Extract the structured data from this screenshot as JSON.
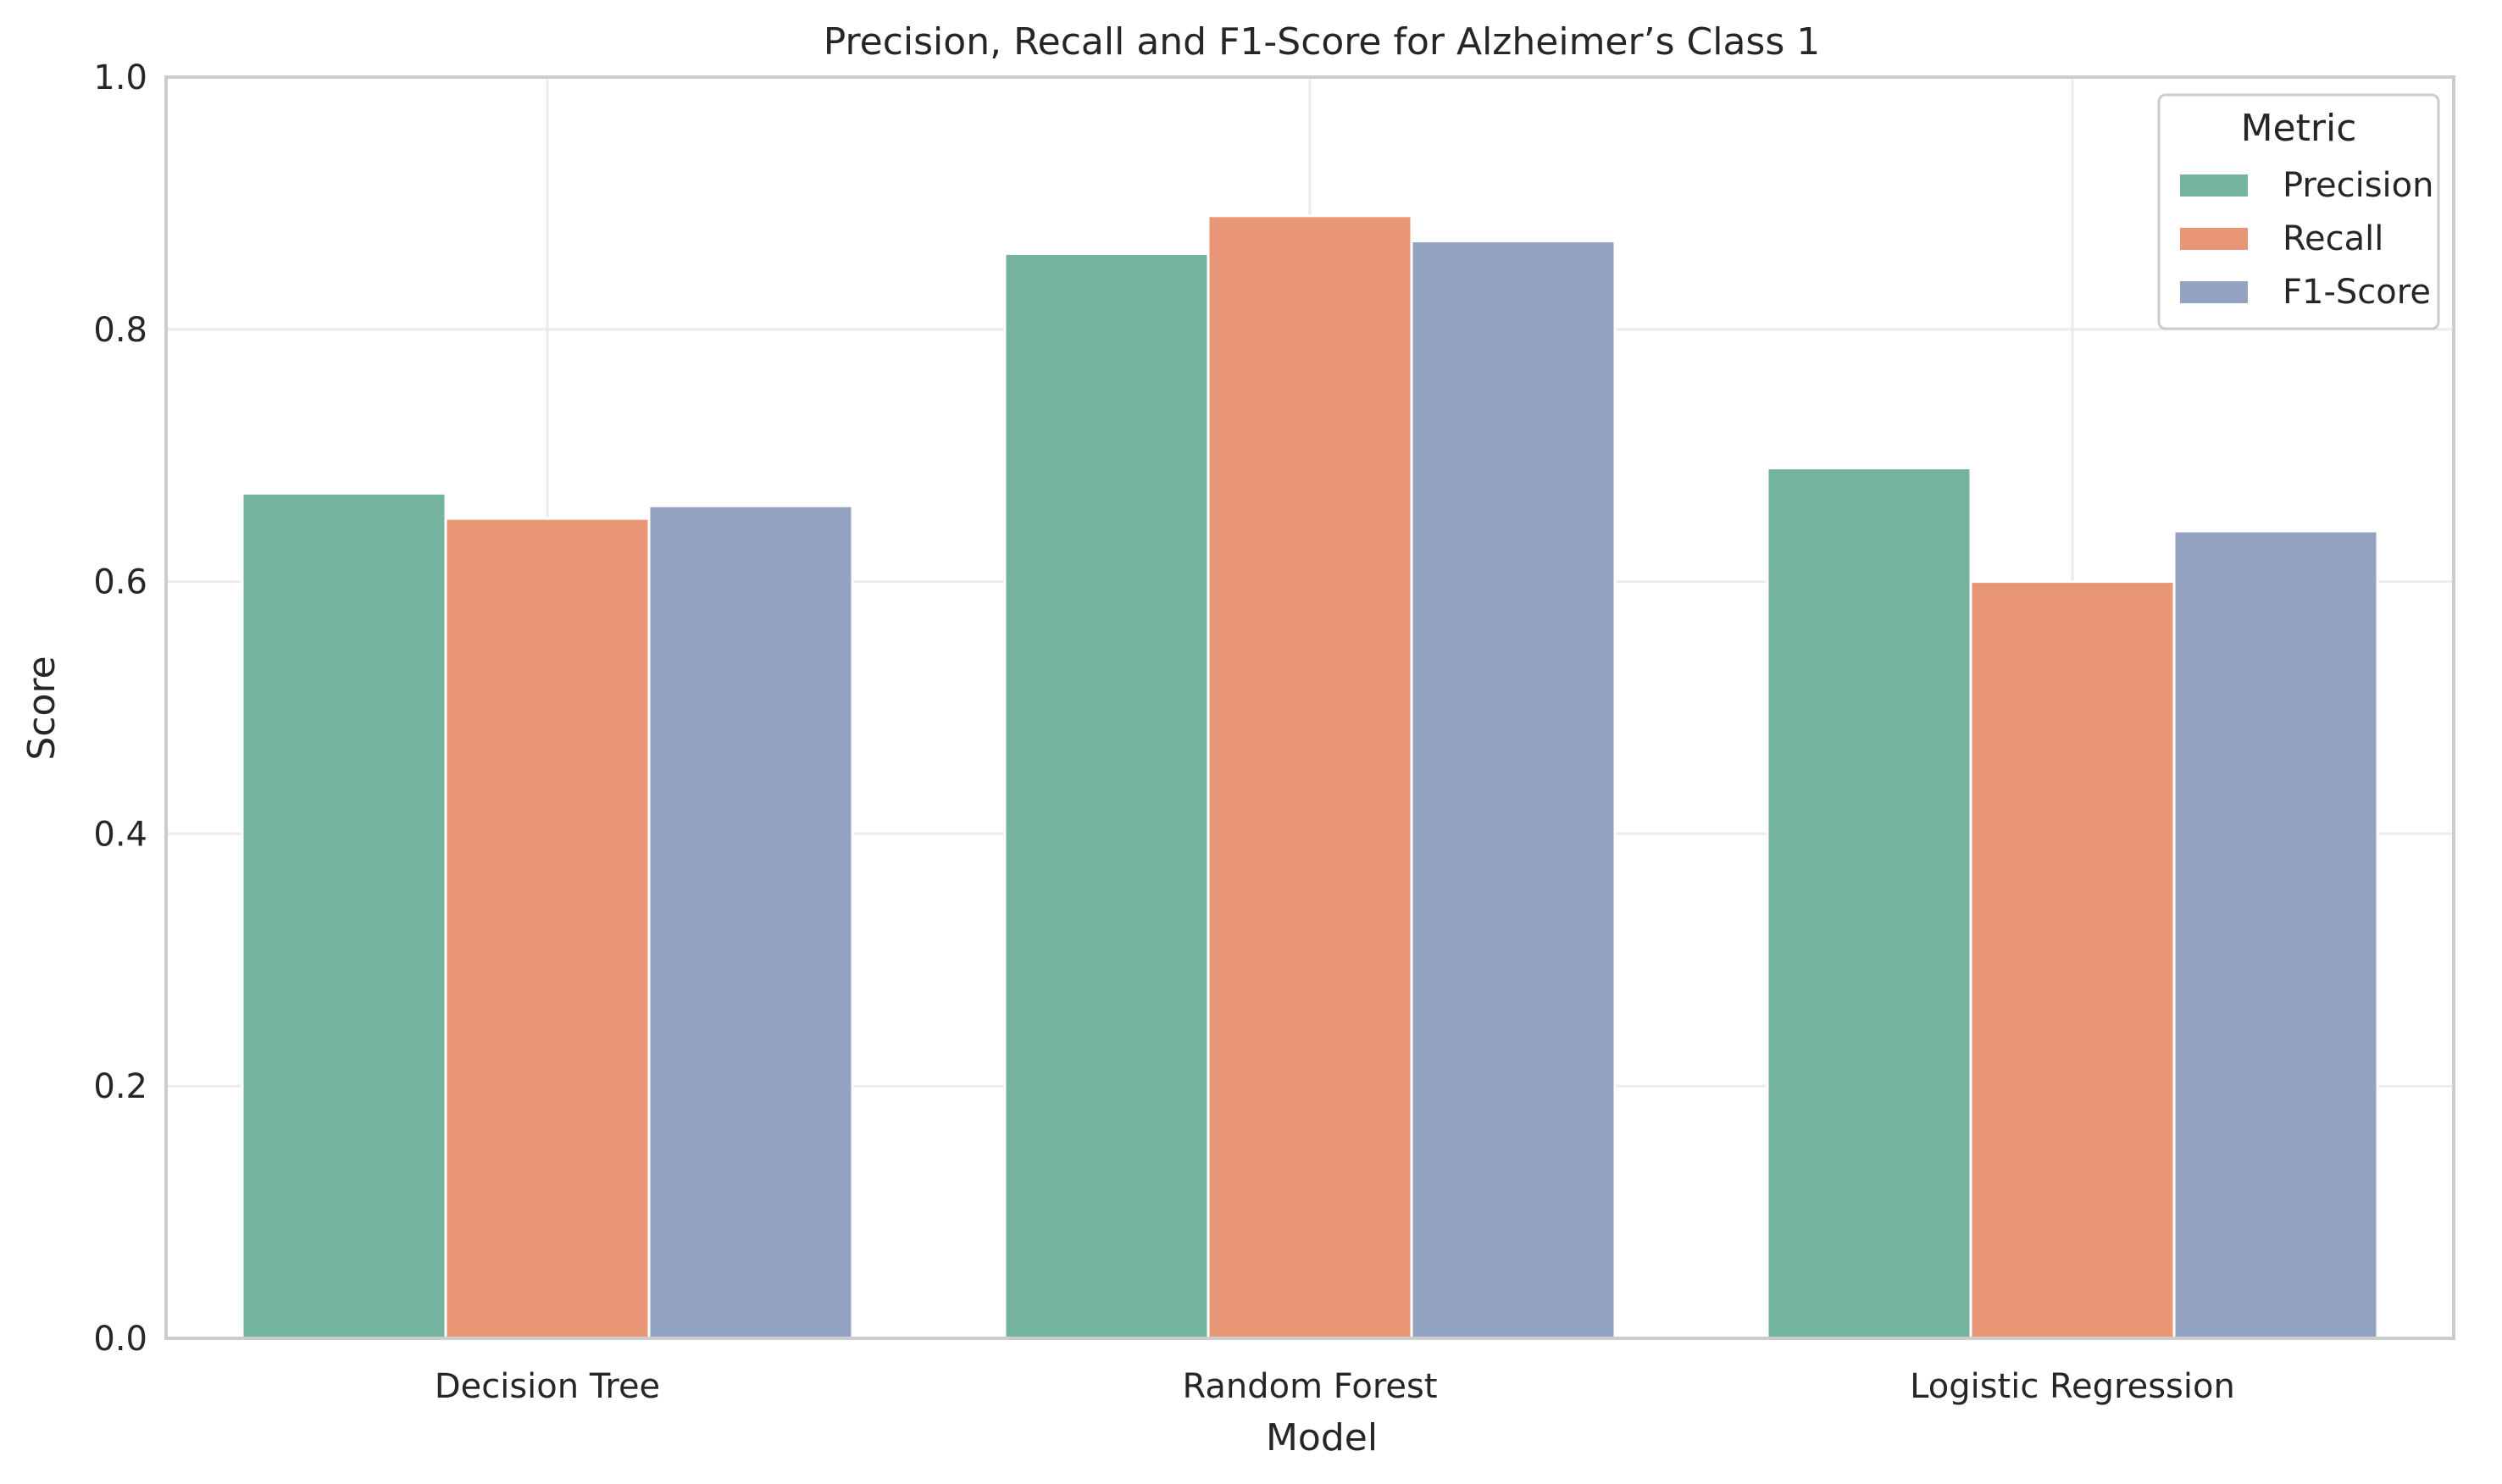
{
  "chart_data": {
    "type": "bar",
    "title": "Precision, Recall and F1-Score for Alzheimer’s Class 1",
    "xlabel": "Model",
    "ylabel": "Score",
    "categories": [
      "Decision Tree",
      "Random Forest",
      "Logistic Regression"
    ],
    "series": [
      {
        "name": "Precision",
        "values": [
          0.67,
          0.86,
          0.69
        ],
        "color": "#73b39f"
      },
      {
        "name": "Recall",
        "values": [
          0.65,
          0.89,
          0.6
        ],
        "color": "#e89675"
      },
      {
        "name": "F1-Score",
        "values": [
          0.66,
          0.87,
          0.64
        ],
        "color": "#95a3c2"
      }
    ],
    "ylim": [
      0,
      1.0
    ],
    "yticks": [
      "0.0",
      "0.2",
      "0.4",
      "0.6",
      "0.8",
      "1.0"
    ],
    "grid": true,
    "legend": {
      "title": "Metric",
      "position": "top-right"
    }
  }
}
